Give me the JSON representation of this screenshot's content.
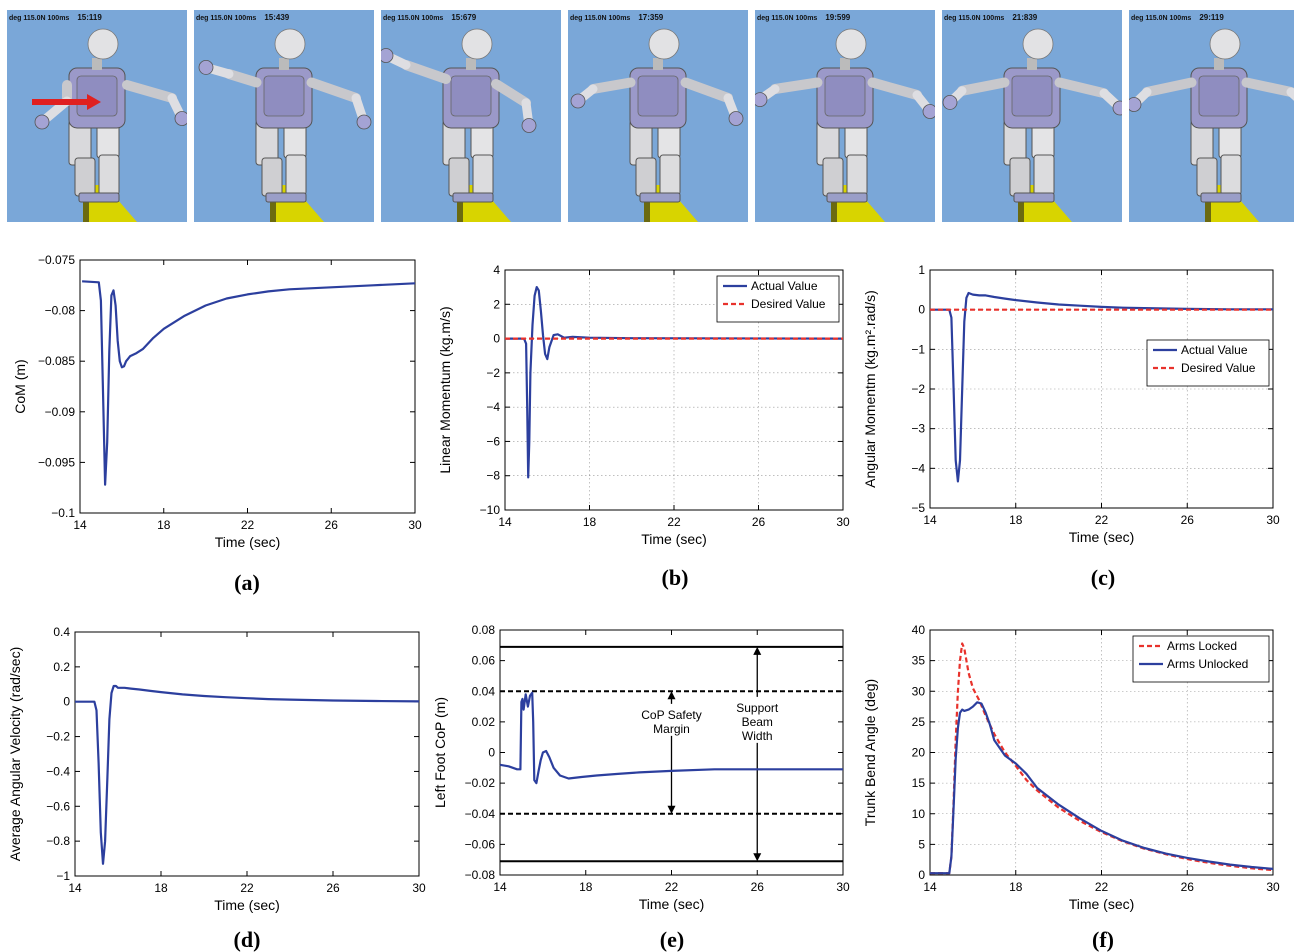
{
  "frames": [
    {
      "caption": "deg 115.0N 100ms",
      "time": "15:119",
      "arrow": true
    },
    {
      "caption": "deg 115.0N 100ms",
      "time": "15:439",
      "arrow": false
    },
    {
      "caption": "deg 115.0N 100ms",
      "time": "15:679",
      "arrow": false
    },
    {
      "caption": "deg 115.0N 100ms",
      "time": "17:359",
      "arrow": false
    },
    {
      "caption": "deg 115.0N 100ms",
      "time": "19:599",
      "arrow": false
    },
    {
      "caption": "deg 115.0N 100ms",
      "time": "21:839",
      "arrow": false
    },
    {
      "caption": "deg 115.0N 100ms",
      "time": "29:119",
      "arrow": false
    }
  ],
  "colors": {
    "sky": "#7aa7d8",
    "actual": "#2c3f9e",
    "desired": "#e8322c",
    "beam": "#d8d400"
  },
  "chart_data": [
    {
      "id": "a",
      "panel_label": "(a)",
      "type": "line",
      "xlabel": "Time (sec)",
      "ylabel": "CoM (m)",
      "xlim": [
        14,
        30
      ],
      "ylim": [
        -0.1,
        -0.075
      ],
      "xticks": [
        14,
        18,
        22,
        26,
        30
      ],
      "yticks": [
        -0.1,
        -0.095,
        -0.09,
        -0.085,
        -0.08,
        -0.075
      ],
      "ytick_labels": [
        "−0.1",
        "−0.095",
        "−0.09",
        "−0.085",
        "−0.08",
        "−0.075"
      ],
      "grid": false,
      "legend": "",
      "series": [
        {
          "name": "",
          "style": "actual",
          "x": [
            14.1,
            14.9,
            15.0,
            15.1,
            15.2,
            15.3,
            15.4,
            15.5,
            15.6,
            15.7,
            15.8,
            15.9,
            16.0,
            16.1,
            16.2,
            16.4,
            16.7,
            17.0,
            17.5,
            18.0,
            19.0,
            20.0,
            21.0,
            22.0,
            23.0,
            24.0,
            25.0,
            26.0,
            27.0,
            28.0,
            29.0,
            30.0
          ],
          "y": [
            -0.0771,
            -0.0772,
            -0.079,
            -0.088,
            -0.0972,
            -0.093,
            -0.084,
            -0.0785,
            -0.078,
            -0.0795,
            -0.083,
            -0.085,
            -0.0856,
            -0.0855,
            -0.085,
            -0.0845,
            -0.0842,
            -0.0838,
            -0.0827,
            -0.0818,
            -0.0805,
            -0.0795,
            -0.0788,
            -0.0784,
            -0.0781,
            -0.0779,
            -0.0778,
            -0.0777,
            -0.0776,
            -0.0775,
            -0.0774,
            -0.0773
          ]
        }
      ]
    },
    {
      "id": "b",
      "panel_label": "(b)",
      "type": "line",
      "xlabel": "Time (sec)",
      "ylabel": "Linear Momentum (kg.m/s)",
      "xlim": [
        14,
        30
      ],
      "ylim": [
        -10,
        4
      ],
      "xticks": [
        14,
        18,
        22,
        26,
        30
      ],
      "yticks": [
        -10,
        -8,
        -6,
        -4,
        -2,
        0,
        2,
        4
      ],
      "ytick_labels": [
        "−10",
        "−8",
        "−6",
        "−4",
        "−2",
        "0",
        "2",
        "4"
      ],
      "grid": true,
      "legend": "top-right",
      "series": [
        {
          "name": "Actual Value",
          "style": "actual",
          "x": [
            14.0,
            14.9,
            15.0,
            15.05,
            15.1,
            15.15,
            15.2,
            15.3,
            15.4,
            15.5,
            15.6,
            15.7,
            15.8,
            15.9,
            16.0,
            16.1,
            16.3,
            16.5,
            16.8,
            17.2,
            18.0,
            20.0,
            30.0
          ],
          "y": [
            0,
            0,
            -0.3,
            -4.0,
            -8.1,
            -6.0,
            -2.0,
            0.8,
            2.5,
            3.0,
            2.8,
            1.6,
            0.2,
            -0.9,
            -1.2,
            -0.5,
            0.2,
            0.25,
            0.05,
            0.1,
            0.05,
            0.02,
            0
          ]
        },
        {
          "name": "Desired Value",
          "style": "desired",
          "x": [
            14,
            30
          ],
          "y": [
            0,
            0
          ]
        }
      ]
    },
    {
      "id": "c",
      "panel_label": "(c)",
      "type": "line",
      "xlabel": "Time (sec)",
      "ylabel": "Angular Momentm (kg.m².rad/s)",
      "xlim": [
        14,
        30
      ],
      "ylim": [
        -5,
        1
      ],
      "xticks": [
        14,
        18,
        22,
        26,
        30
      ],
      "yticks": [
        -5,
        -4,
        -3,
        -2,
        -1,
        0,
        1
      ],
      "ytick_labels": [
        "−5",
        "−4",
        "−3",
        "−2",
        "−1",
        "0",
        "1"
      ],
      "grid": true,
      "legend": "center-right",
      "series": [
        {
          "name": "Actual Value",
          "style": "actual",
          "x": [
            14.0,
            14.9,
            15.0,
            15.1,
            15.2,
            15.3,
            15.4,
            15.5,
            15.6,
            15.7,
            15.8,
            16.0,
            16.3,
            16.6,
            17.0,
            17.5,
            18.0,
            19.0,
            20.0,
            21.0,
            22.0,
            23.0,
            24.0,
            26.0,
            28.0,
            30.0
          ],
          "y": [
            0,
            0,
            -0.2,
            -2.0,
            -3.8,
            -4.33,
            -3.8,
            -2.0,
            -0.3,
            0.3,
            0.42,
            0.38,
            0.36,
            0.36,
            0.32,
            0.28,
            0.24,
            0.18,
            0.13,
            0.1,
            0.07,
            0.05,
            0.04,
            0.02,
            0.01,
            0.01
          ]
        },
        {
          "name": "Desired Value",
          "style": "desired",
          "x": [
            14,
            30
          ],
          "y": [
            0,
            0
          ]
        }
      ]
    },
    {
      "id": "d",
      "panel_label": "(d)",
      "type": "line",
      "xlabel": "Time (sec)",
      "ylabel": "Average Angular Velocity (rad/sec)",
      "xlim": [
        14,
        30
      ],
      "ylim": [
        -1,
        0.4
      ],
      "xticks": [
        14,
        18,
        22,
        26,
        30
      ],
      "yticks": [
        -1,
        -0.8,
        -0.6,
        -0.4,
        -0.2,
        0,
        0.2,
        0.4
      ],
      "ytick_labels": [
        "−1",
        "−0.8",
        "−0.6",
        "−0.4",
        "−0.2",
        "0",
        "0.2",
        "0.4"
      ],
      "grid": false,
      "legend": "",
      "series": [
        {
          "name": "",
          "style": "actual",
          "x": [
            14.0,
            14.9,
            15.0,
            15.1,
            15.2,
            15.3,
            15.4,
            15.5,
            15.6,
            15.7,
            15.8,
            15.9,
            16.0,
            16.3,
            16.6,
            17.0,
            17.5,
            18.0,
            19.0,
            20.0,
            21.0,
            22.0,
            23.0,
            24.0,
            26.0,
            28.0,
            30.0
          ],
          "y": [
            0,
            0,
            -0.05,
            -0.35,
            -0.75,
            -0.93,
            -0.8,
            -0.45,
            -0.1,
            0.05,
            0.09,
            0.09,
            0.08,
            0.08,
            0.075,
            0.07,
            0.062,
            0.055,
            0.042,
            0.033,
            0.026,
            0.02,
            0.015,
            0.012,
            0.007,
            0.004,
            0.002
          ]
        }
      ]
    },
    {
      "id": "e",
      "panel_label": "(e)",
      "type": "line",
      "xlabel": "Time (sec)",
      "ylabel": "Left Foot CoP (m)",
      "xlim": [
        14,
        30
      ],
      "ylim": [
        -0.08,
        0.08
      ],
      "xticks": [
        14,
        18,
        22,
        26,
        30
      ],
      "yticks": [
        -0.08,
        -0.06,
        -0.04,
        -0.02,
        0,
        0.02,
        0.04,
        0.06,
        0.08
      ],
      "ytick_labels": [
        "−0.08",
        "−0.06",
        "−0.04",
        "−0.02",
        "0",
        "0.02",
        "0.04",
        "0.06",
        "0.08"
      ],
      "grid": false,
      "legend": "",
      "hlines": [
        {
          "y": 0.069,
          "style": "solid"
        },
        {
          "y": -0.071,
          "style": "solid"
        },
        {
          "y": 0.04,
          "style": "dashed"
        },
        {
          "y": -0.04,
          "style": "dashed"
        }
      ],
      "annotations": [
        {
          "lines": [
            "CoP Safety",
            "Margin"
          ],
          "x": 22.0,
          "y": 0.02,
          "arrow_x": 22.0,
          "arrow_from": 0.04,
          "arrow_to": -0.04
        },
        {
          "lines": [
            "Support",
            "Beam",
            "Width"
          ],
          "x": 26.0,
          "y": 0.02,
          "arrow_x": 26.0,
          "arrow_from": 0.069,
          "arrow_to": -0.071
        }
      ],
      "series": [
        {
          "name": "",
          "style": "actual",
          "x": [
            14.0,
            14.4,
            14.8,
            14.95,
            15.0,
            15.05,
            15.1,
            15.2,
            15.3,
            15.4,
            15.5,
            15.55,
            15.6,
            15.7,
            15.8,
            15.9,
            16.0,
            16.15,
            16.3,
            16.5,
            16.8,
            17.2,
            17.8,
            18.5,
            19.5,
            20.5,
            22.0,
            24.0,
            26.0,
            28.0,
            30.0
          ],
          "y": [
            -0.008,
            -0.009,
            -0.011,
            -0.011,
            0.033,
            0.035,
            0.028,
            0.038,
            0.03,
            0.037,
            0.039,
            0.02,
            -0.018,
            -0.02,
            -0.012,
            -0.005,
            0.0,
            0.001,
            -0.003,
            -0.01,
            -0.015,
            -0.017,
            -0.016,
            -0.015,
            -0.014,
            -0.013,
            -0.012,
            -0.011,
            -0.011,
            -0.011,
            -0.011
          ]
        }
      ]
    },
    {
      "id": "f",
      "panel_label": "(f)",
      "type": "line",
      "xlabel": "Time (sec)",
      "ylabel": "Trunk Bend Angle (deg)",
      "xlim": [
        14,
        30
      ],
      "ylim": [
        0,
        40
      ],
      "xticks": [
        14,
        18,
        22,
        26,
        30
      ],
      "yticks": [
        0,
        5,
        10,
        15,
        20,
        25,
        30,
        35,
        40
      ],
      "ytick_labels": [
        "0",
        "5",
        "10",
        "15",
        "20",
        "25",
        "30",
        "35",
        "40"
      ],
      "grid": true,
      "legend": "top-right",
      "series": [
        {
          "name": "Arms Locked",
          "style": "desired",
          "x": [
            14.0,
            14.9,
            15.0,
            15.1,
            15.2,
            15.3,
            15.4,
            15.5,
            15.6,
            15.7,
            15.8,
            16.0,
            16.3,
            16.6,
            17.0,
            17.5,
            18.0,
            18.5,
            19.0,
            20.0,
            21.0,
            22.0,
            23.0,
            24.0,
            25.0,
            26.0,
            27.0,
            28.0,
            29.0,
            30.0
          ],
          "y": [
            0.3,
            0.3,
            3.0,
            12.0,
            22.0,
            30.0,
            35.0,
            37.8,
            37.0,
            35.0,
            33.0,
            30.5,
            28.5,
            26.0,
            23.0,
            20.0,
            17.8,
            15.5,
            13.8,
            11.0,
            8.8,
            7.0,
            5.5,
            4.3,
            3.4,
            2.6,
            2.0,
            1.5,
            1.1,
            0.8
          ]
        },
        {
          "name": "Arms Unlocked",
          "style": "actual",
          "x": [
            14.0,
            14.9,
            15.0,
            15.1,
            15.2,
            15.3,
            15.4,
            15.5,
            15.6,
            15.8,
            16.0,
            16.2,
            16.4,
            16.6,
            16.8,
            17.0,
            17.5,
            18.0,
            18.5,
            19.0,
            20.0,
            21.0,
            22.0,
            23.0,
            24.0,
            25.0,
            26.0,
            27.0,
            28.0,
            29.0,
            30.0
          ],
          "y": [
            0.3,
            0.3,
            3.0,
            11.0,
            19.0,
            24.0,
            26.5,
            27.0,
            26.8,
            27.0,
            27.5,
            28.2,
            28.0,
            26.5,
            24.5,
            22.0,
            19.5,
            18.2,
            16.5,
            14.2,
            11.5,
            9.2,
            7.2,
            5.6,
            4.4,
            3.5,
            2.8,
            2.2,
            1.7,
            1.3,
            1.0
          ]
        }
      ]
    }
  ]
}
